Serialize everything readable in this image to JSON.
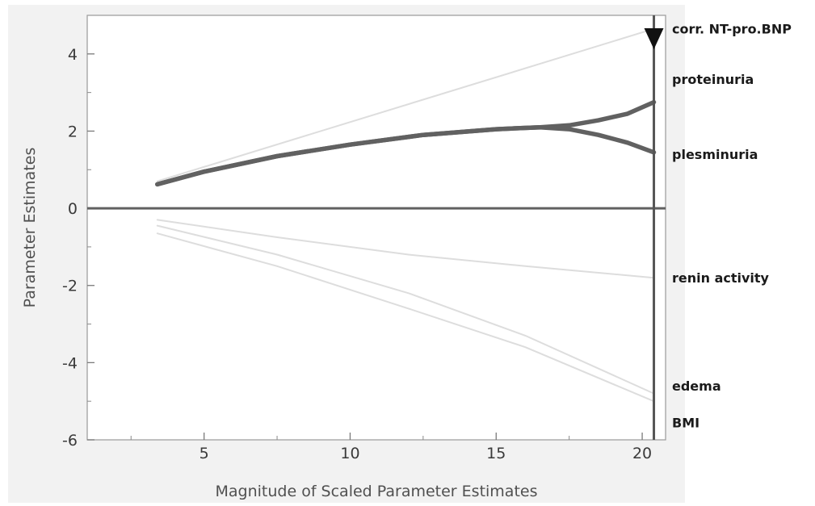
{
  "chart_data": {
    "type": "line",
    "xlabel": "Magnitude of Scaled Parameter Estimates",
    "ylabel": "Parameter Estimates",
    "xlim": [
      1,
      20.8
    ],
    "ylim": [
      -6,
      5
    ],
    "x_ticks": [
      5,
      10,
      15,
      20
    ],
    "y_ticks": [
      4,
      2,
      0,
      -2,
      -4,
      -6
    ],
    "grid": false,
    "zero_line": 0,
    "vertical_marker_x": 20.4,
    "series": [
      {
        "name": "corr. NT-pro.BNP",
        "color": "#dddddd",
        "x": [
          3.4,
          20.4
        ],
        "y": [
          0.7,
          4.65
        ]
      },
      {
        "name": "proteinuria",
        "color": "#616161",
        "x": [
          3.4,
          5,
          7.5,
          10,
          12.5,
          15,
          16.5,
          17.5,
          18.5,
          19.5,
          20.4
        ],
        "y": [
          0.62,
          0.95,
          1.35,
          1.65,
          1.9,
          2.05,
          2.1,
          2.15,
          2.28,
          2.45,
          2.75
        ]
      },
      {
        "name": "plesminuria",
        "color": "#616161",
        "x": [
          3.4,
          5,
          7.5,
          10,
          12.5,
          15,
          16.5,
          17.5,
          18.5,
          19.5,
          20.4
        ],
        "y": [
          0.62,
          0.95,
          1.35,
          1.65,
          1.9,
          2.05,
          2.1,
          2.05,
          1.9,
          1.7,
          1.45
        ]
      },
      {
        "name": "renin activity",
        "color": "#dddddd",
        "x": [
          3.4,
          7.5,
          12,
          16,
          20.4
        ],
        "y": [
          -0.3,
          -0.75,
          -1.2,
          -1.5,
          -1.8
        ]
      },
      {
        "name": "edema",
        "color": "#dddddd",
        "x": [
          3.4,
          7.5,
          12,
          16,
          20.4
        ],
        "y": [
          -0.45,
          -1.2,
          -2.2,
          -3.3,
          -4.8
        ]
      },
      {
        "name": "BMI",
        "color": "#dddddd",
        "x": [
          3.4,
          7.5,
          12,
          16,
          20.4
        ],
        "y": [
          -0.65,
          -1.5,
          -2.6,
          -3.6,
          -5.0
        ]
      }
    ],
    "labels": [
      {
        "text": "corr. NT-pro.BNP",
        "y": 4.65
      },
      {
        "text": "proteinuria",
        "y": 3.35
      },
      {
        "text": "plesminuria",
        "y": 1.4
      },
      {
        "text": "renin activity",
        "y": -1.8
      },
      {
        "text": "edema",
        "y": -4.6
      },
      {
        "text": "BMI",
        "y": -5.55
      }
    ]
  }
}
